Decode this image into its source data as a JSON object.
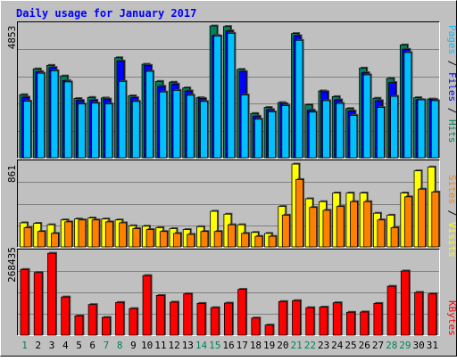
{
  "chart_data": [
    {
      "type": "bar",
      "title": "Daily usage for January 2017",
      "ylabel_parts": [
        "Pages",
        "Files",
        "Hits"
      ],
      "max_label": "4853",
      "ylim": [
        0,
        4853
      ],
      "categories": [
        "1",
        "2",
        "3",
        "4",
        "5",
        "6",
        "7",
        "8",
        "9",
        "10",
        "11",
        "12",
        "13",
        "14",
        "15",
        "16",
        "17",
        "18",
        "19",
        "20",
        "21",
        "22",
        "23",
        "24",
        "25",
        "26",
        "27",
        "28",
        "29",
        "30",
        "31"
      ],
      "weekend_days": [
        "1",
        "7",
        "8",
        "14",
        "15",
        "21",
        "22",
        "28",
        "29"
      ],
      "series": [
        {
          "name": "Hits",
          "values": [
            2320,
            3270,
            3400,
            3010,
            2180,
            2220,
            2200,
            3680,
            2280,
            3440,
            2810,
            2780,
            2570,
            2210,
            4850,
            4830,
            3250,
            1630,
            1850,
            2030,
            4570,
            1950,
            2460,
            2250,
            1810,
            3300,
            2190,
            2920,
            4150,
            2210,
            2160
          ]
        },
        {
          "name": "Files",
          "values": [
            2230,
            3170,
            3320,
            2840,
            2110,
            2120,
            2160,
            3560,
            2210,
            3400,
            2630,
            2710,
            2460,
            2180,
            4500,
            4670,
            3170,
            1530,
            1770,
            1990,
            4490,
            1750,
            2430,
            2130,
            1720,
            3130,
            2100,
            2770,
            3990,
            2140,
            2150
          ]
        },
        {
          "name": "Pages",
          "values": [
            2080,
            3110,
            3200,
            2790,
            1980,
            2010,
            1980,
            2810,
            2070,
            3180,
            2420,
            2480,
            2300,
            2070,
            4480,
            4580,
            2310,
            1420,
            1690,
            1920,
            4320,
            1680,
            2100,
            2000,
            1560,
            3050,
            1850,
            2260,
            3870,
            2130,
            2100
          ]
        }
      ]
    },
    {
      "type": "bar",
      "ylabel_parts": [
        "Sites",
        "Visits"
      ],
      "max_label": "861",
      "ylim": [
        0,
        861
      ],
      "series": [
        {
          "name": "Visits",
          "values": [
            250,
            245,
            230,
            280,
            290,
            300,
            290,
            280,
            220,
            215,
            200,
            190,
            180,
            210,
            370,
            340,
            230,
            150,
            140,
            420,
            860,
            500,
            470,
            560,
            560,
            560,
            350,
            330,
            560,
            790,
            830
          ]
        },
        {
          "name": "Sites",
          "values": [
            200,
            160,
            140,
            260,
            280,
            280,
            260,
            250,
            190,
            180,
            160,
            140,
            130,
            160,
            160,
            230,
            140,
            110,
            110,
            330,
            700,
            410,
            380,
            420,
            470,
            470,
            280,
            200,
            520,
            600,
            570
          ]
        }
      ]
    },
    {
      "type": "bar",
      "ylabel_parts": [
        "KBytes"
      ],
      "max_label": "268435",
      "ylim": [
        0,
        268435
      ],
      "series": [
        {
          "name": "KBytes",
          "values": [
            215000,
            205000,
            268000,
            125000,
            63000,
            100000,
            58000,
            107000,
            87000,
            195000,
            130000,
            108000,
            135000,
            104000,
            90000,
            105000,
            150000,
            56000,
            33000,
            110000,
            113000,
            90000,
            92000,
            106000,
            75000,
            76000,
            104000,
            160000,
            210000,
            140000,
            135000
          ]
        }
      ]
    }
  ],
  "colors": {
    "frame_bg": "#c0c0c0",
    "panel_bg": "#c0c0c0",
    "title": "#0000ff",
    "hits": "#00805c",
    "files": "#0000ff",
    "pages": "#00c0ff",
    "visits": "#ffff00",
    "sites": "#ff8000",
    "kbytes": "#ff0000",
    "weekday_label": "#000000",
    "weekend_label": "#00805c",
    "ylabel_sep": "#000000",
    "grid": "#808080"
  }
}
